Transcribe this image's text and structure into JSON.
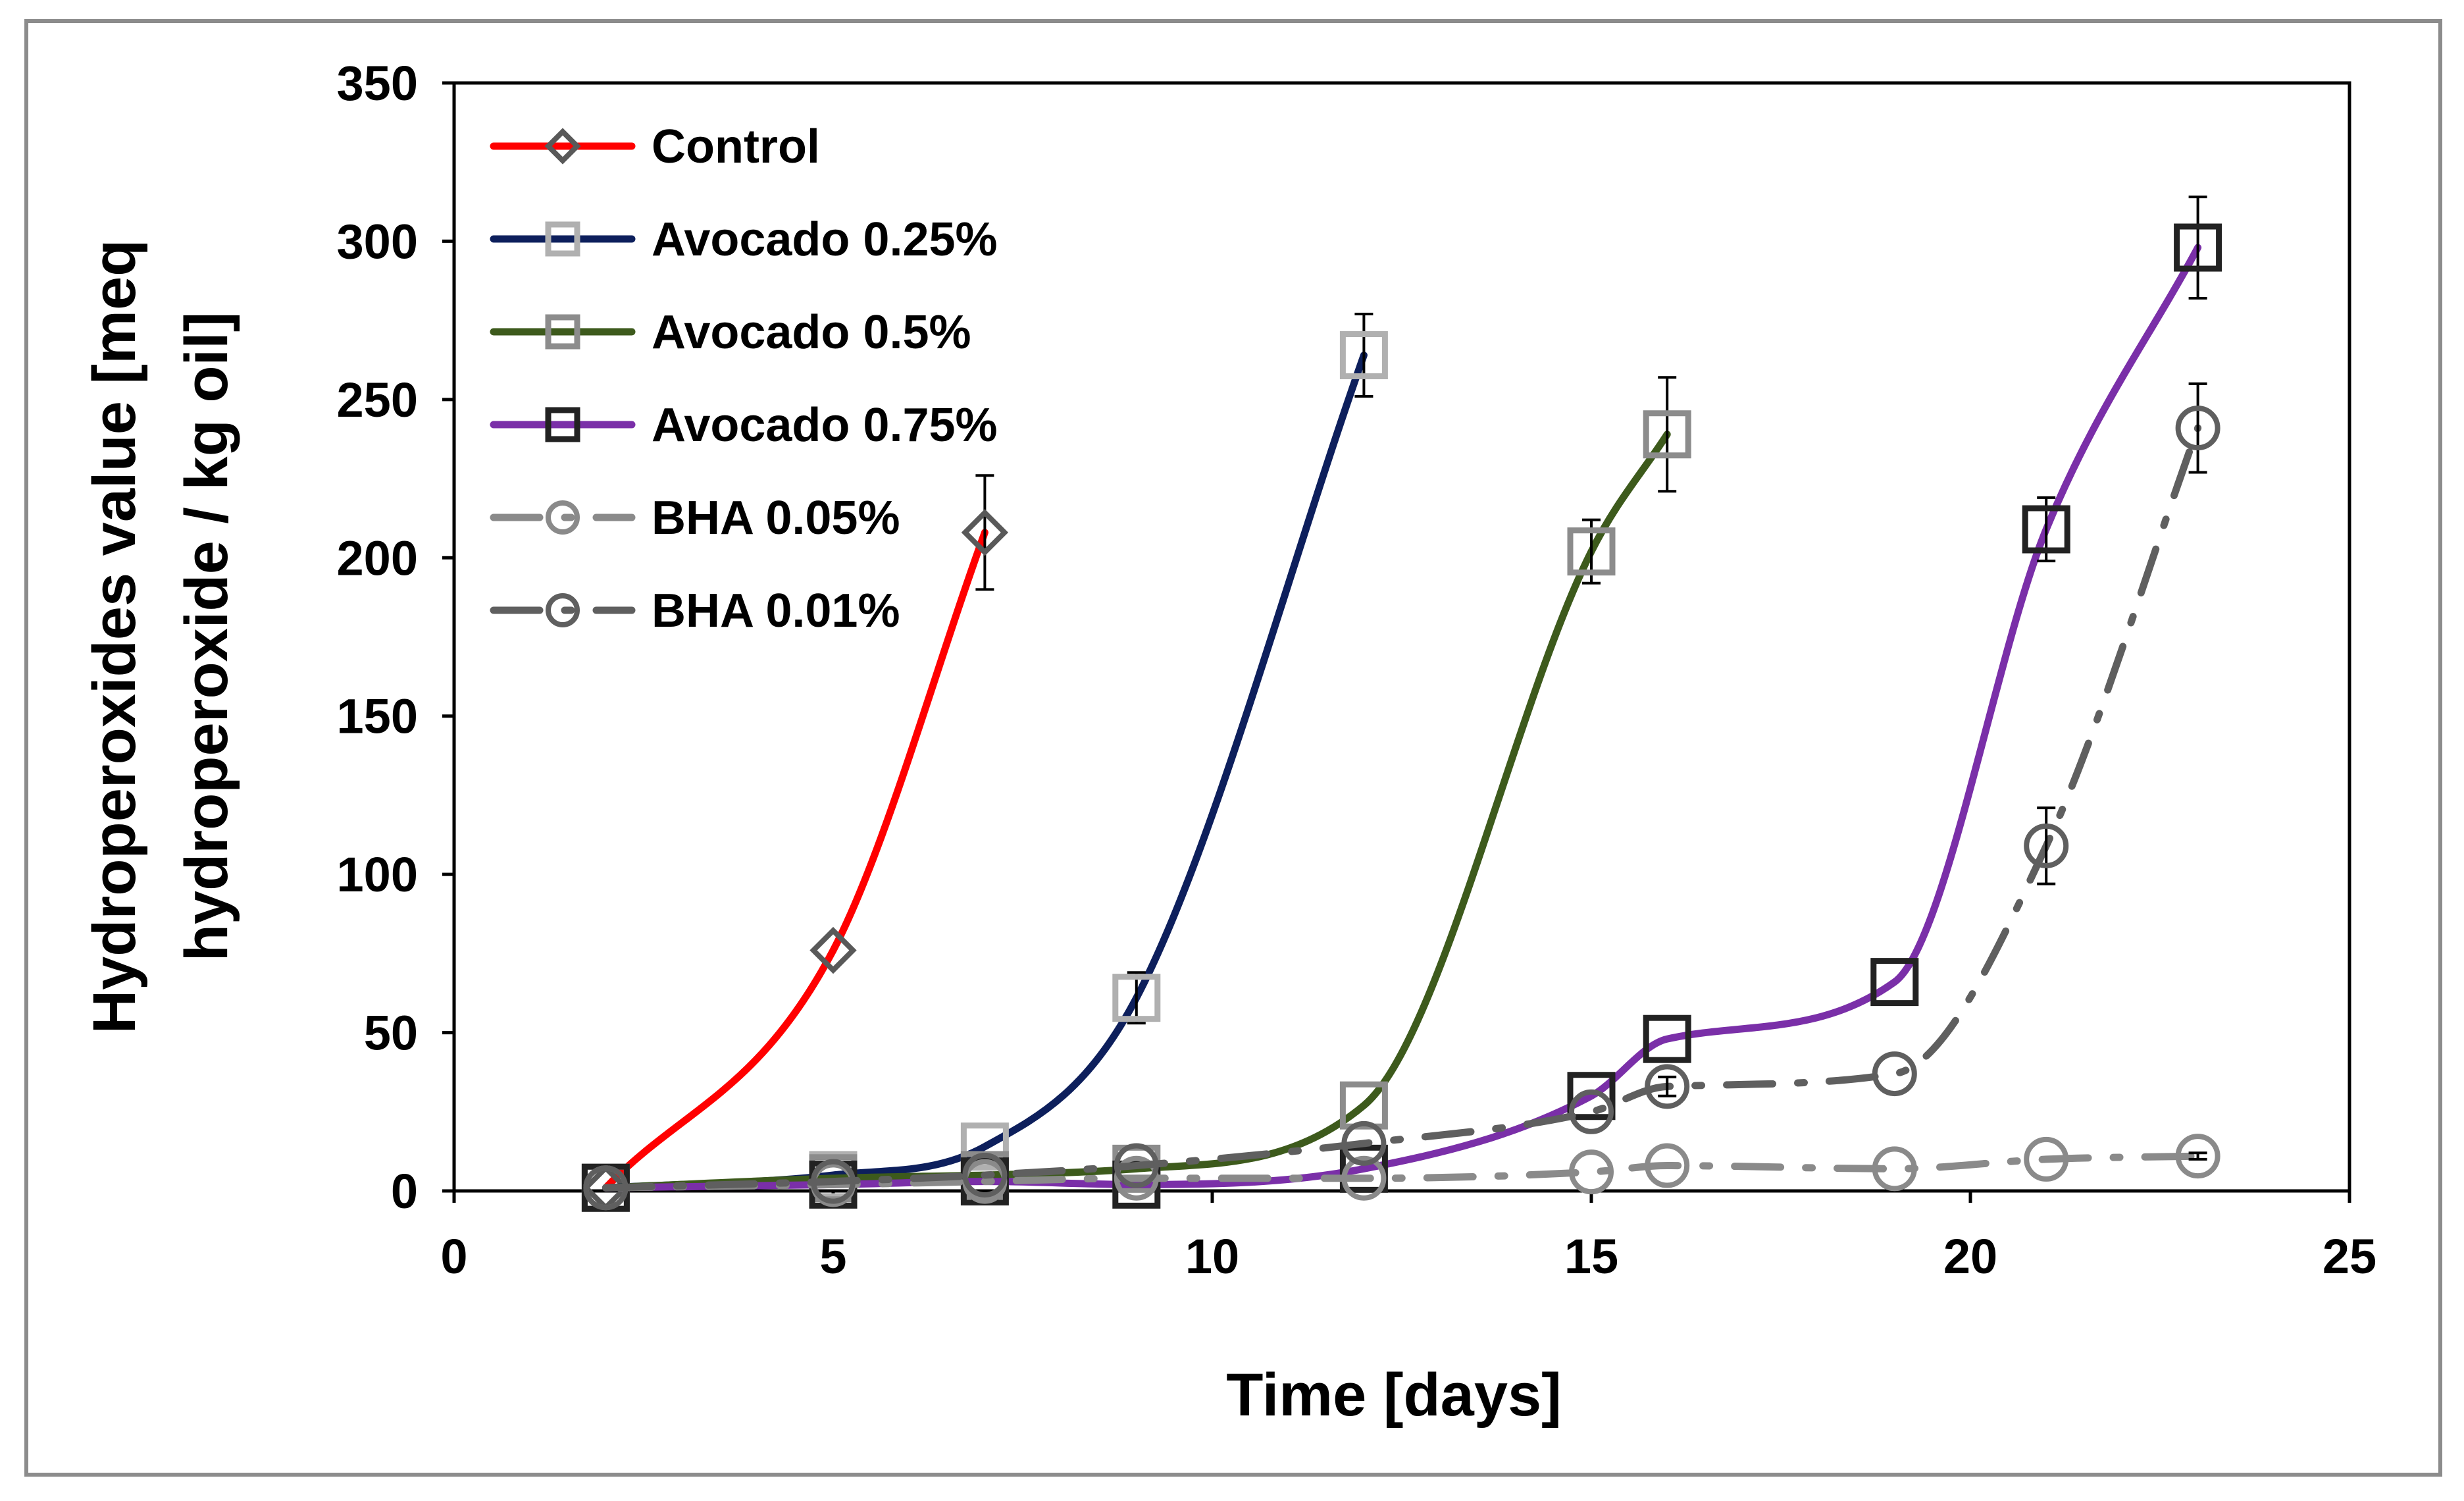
{
  "chart_data": {
    "type": "line",
    "title": "",
    "xlabel": "Time [days]",
    "ylabel_lines": [
      "Hydroperoxides value [meq",
      "hydroperoxide / kg oil]"
    ],
    "xlim": [
      0,
      25
    ],
    "ylim": [
      0,
      350
    ],
    "x_ticks": [
      0,
      5,
      10,
      15,
      20,
      25
    ],
    "y_ticks": [
      0,
      50,
      100,
      150,
      200,
      250,
      300,
      350
    ],
    "x_tick_labels": [
      "0",
      "5",
      "10",
      "15",
      "20",
      "25"
    ],
    "y_tick_labels": [
      "0",
      "50",
      "100",
      "150",
      "200",
      "250",
      "300",
      "350"
    ],
    "grid": false,
    "legend_position": "top-left inside",
    "series": [
      {
        "name": "Control",
        "color": "#ff0000",
        "marker": "diamond",
        "marker_color": "#595959",
        "dash": "solid",
        "x": [
          2,
          5,
          7
        ],
        "y": [
          1,
          76,
          208
        ],
        "err": [
          0,
          0,
          18
        ]
      },
      {
        "name": "Avocado 0.25%",
        "color": "#0d1f5c",
        "marker": "square",
        "marker_color": "#b0b0b0",
        "dash": "solid",
        "x": [
          2,
          5,
          7,
          9,
          12
        ],
        "y": [
          1,
          5,
          14,
          61,
          264
        ],
        "err": [
          0,
          0,
          0,
          8,
          13
        ]
      },
      {
        "name": "Avocado 0.5%",
        "color": "#3d5a1c",
        "marker": "square",
        "marker_color": "#8c8c8c",
        "dash": "solid",
        "x": [
          2,
          5,
          7,
          9,
          12,
          15,
          16
        ],
        "y": [
          1,
          4,
          5,
          7,
          27,
          202,
          239
        ],
        "err": [
          0,
          0,
          0,
          0,
          0,
          10,
          18
        ]
      },
      {
        "name": "Avocado 0.75%",
        "color": "#7a2fa8",
        "marker": "square",
        "marker_color": "#222222",
        "dash": "solid",
        "x": [
          2,
          5,
          7,
          9,
          12,
          15,
          16,
          19,
          21,
          23
        ],
        "y": [
          1,
          2,
          3,
          2,
          7,
          30,
          48,
          66,
          209,
          298
        ],
        "err": [
          0,
          0,
          0,
          0,
          0,
          0,
          0,
          0,
          10,
          16
        ]
      },
      {
        "name": "BHA 0.05%",
        "color": "#8a8a8a",
        "marker": "circle",
        "marker_color": "#8a8a8a",
        "dash": "dashdot",
        "x": [
          2,
          5,
          7,
          9,
          12,
          15,
          16,
          19,
          21,
          23
        ],
        "y": [
          1,
          2,
          3,
          4,
          4,
          6,
          8,
          7,
          10,
          11
        ],
        "err": [
          0,
          0,
          0,
          0,
          0,
          0,
          0,
          0,
          0,
          1
        ]
      },
      {
        "name": "BHA 0.01%",
        "color": "#5f5f5f",
        "marker": "circle",
        "marker_color": "#5f5f5f",
        "dash": "dashdot",
        "x": [
          2,
          5,
          7,
          9,
          12,
          15,
          16,
          19,
          21,
          23
        ],
        "y": [
          1,
          3,
          5,
          8,
          15,
          25,
          33,
          37,
          109,
          241
        ],
        "err": [
          0,
          0,
          0,
          0,
          0,
          0,
          3,
          0,
          12,
          14
        ]
      }
    ]
  }
}
